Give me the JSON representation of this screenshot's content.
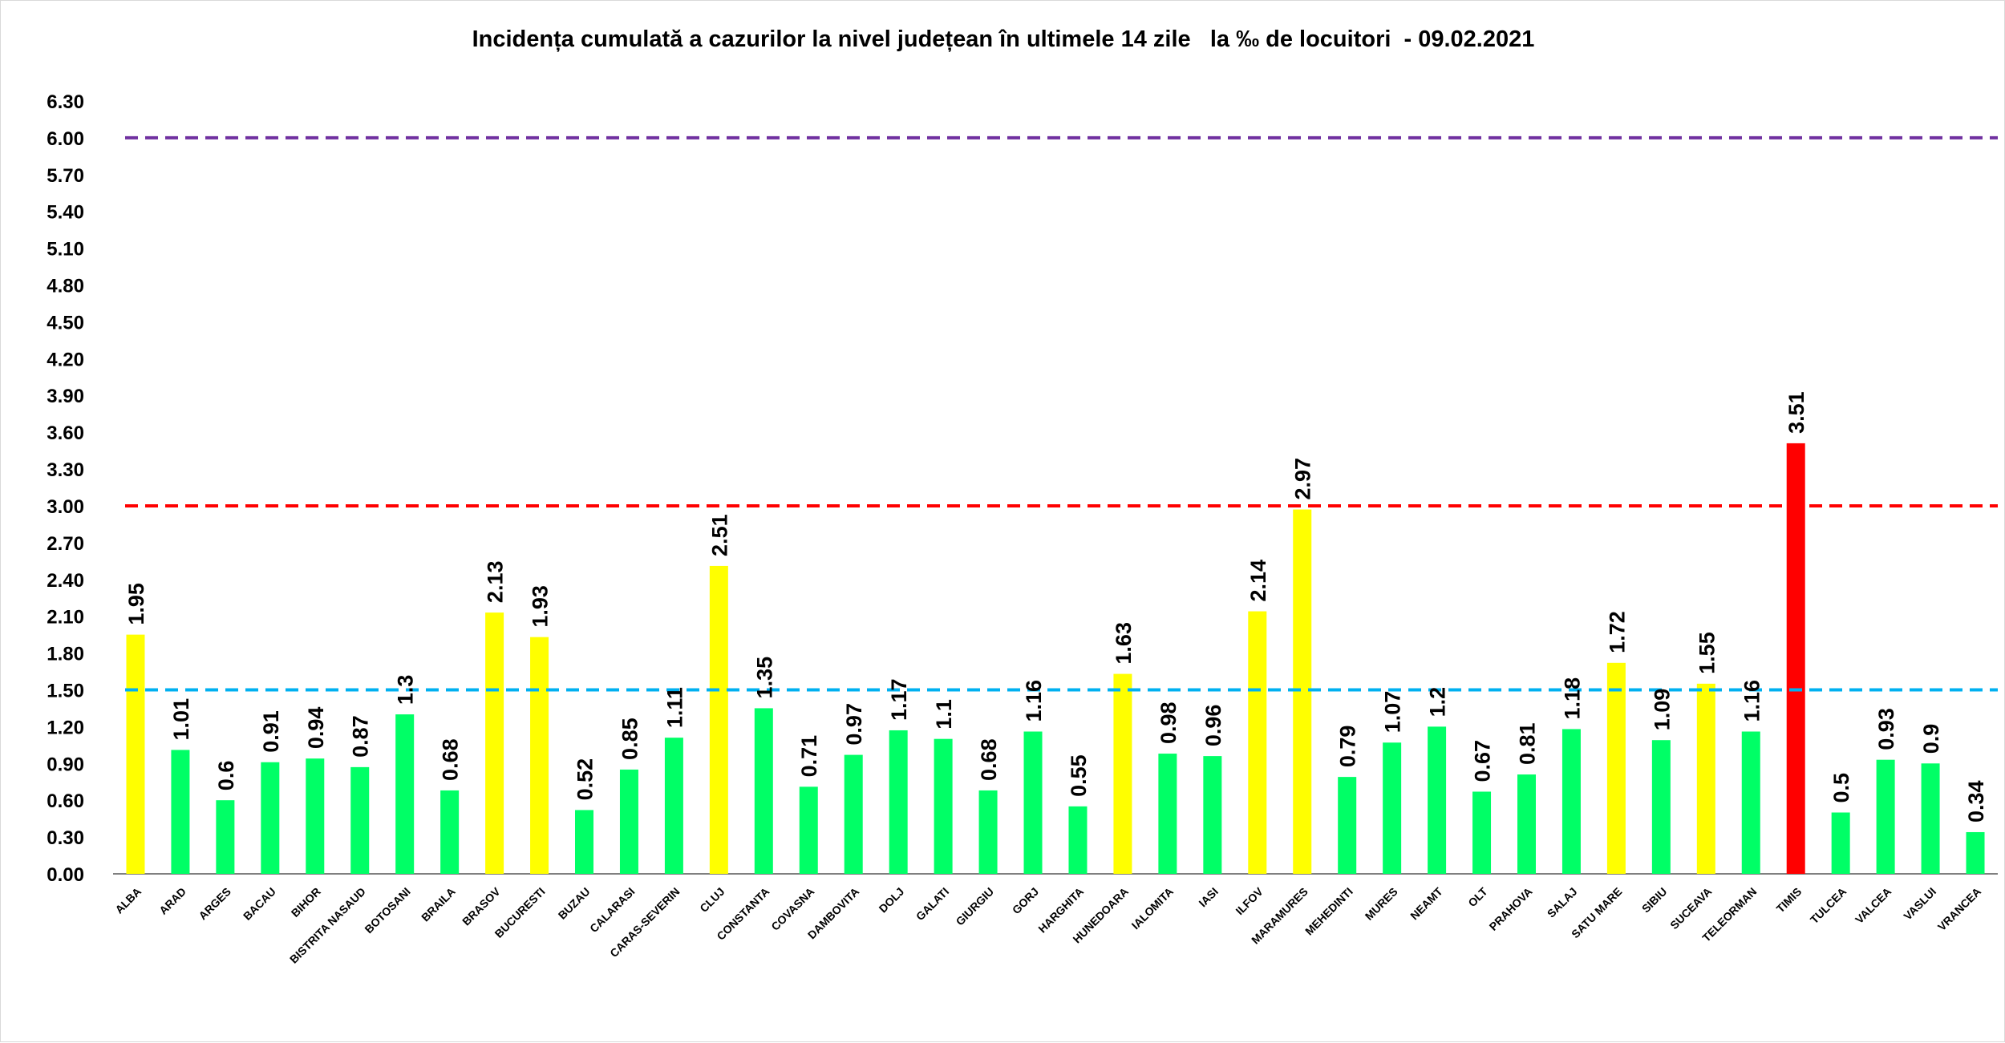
{
  "chart_data": {
    "type": "bar",
    "title": "Incidența cumulată a cazurilor la nivel județean în ultimele 14 zile   la ‰ de locuitori  - 09.02.2021",
    "xlabel": "",
    "ylabel": "",
    "ylim": [
      0,
      6.3
    ],
    "yticks": [
      "0.00",
      "0.30",
      "0.60",
      "0.90",
      "1.20",
      "1.50",
      "1.80",
      "2.10",
      "2.40",
      "2.70",
      "3.00",
      "3.30",
      "3.60",
      "3.90",
      "4.20",
      "4.50",
      "4.80",
      "5.10",
      "5.40",
      "5.70",
      "6.00",
      "6.30"
    ],
    "grid": false,
    "legend": "none",
    "categories": [
      "ALBA",
      "ARAD",
      "ARGES",
      "BACAU",
      "BIHOR",
      "BISTRITA NASAUD",
      "BOTOSANI",
      "BRAILA",
      "BRASOV",
      "BUCURESTI",
      "BUZAU",
      "CALARASI",
      "CARAS-SEVERIN",
      "CLUJ",
      "CONSTANTA",
      "COVASNA",
      "DAMBOVITA",
      "DOLJ",
      "GALATI",
      "GIURGIU",
      "GORJ",
      "HARGHITA",
      "HUNEDOARA",
      "IALOMITA",
      "IASI",
      "ILFOV",
      "MARAMURES",
      "MEHEDINTI",
      "MURES",
      "NEAMT",
      "OLT",
      "PRAHOVA",
      "SALAJ",
      "SATU MARE",
      "SIBIU",
      "SUCEAVA",
      "TELEORMAN",
      "TIMIS",
      "TULCEA",
      "VALCEA",
      "VASLUI",
      "VRANCEA"
    ],
    "values": [
      1.95,
      1.01,
      0.6,
      0.91,
      0.94,
      0.87,
      1.3,
      0.68,
      2.13,
      1.93,
      0.52,
      0.85,
      1.11,
      2.51,
      1.35,
      0.71,
      0.97,
      1.17,
      1.1,
      0.68,
      1.16,
      0.55,
      1.63,
      0.98,
      0.96,
      2.14,
      2.97,
      0.79,
      1.07,
      1.2,
      0.67,
      0.81,
      1.18,
      1.72,
      1.09,
      1.55,
      1.16,
      3.51,
      0.5,
      0.93,
      0.9,
      0.34
    ],
    "value_labels": [
      "1.95",
      "1.01",
      "0.6",
      "0.91",
      "0.94",
      "0.87",
      "1.3",
      "0.68",
      "2.13",
      "1.93",
      "0.52",
      "0.85",
      "1.11",
      "2.51",
      "1.35",
      "0.71",
      "0.97",
      "1.17",
      "1.1",
      "0.68",
      "1.16",
      "0.55",
      "1.63",
      "0.98",
      "0.96",
      "2.14",
      "2.97",
      "0.79",
      "1.07",
      "1.2",
      "0.67",
      "0.81",
      "1.18",
      "1.72",
      "1.09",
      "1.55",
      "1.16",
      "3.51",
      "0.5",
      "0.93",
      "0.9",
      "0.34"
    ],
    "thresholds": [
      {
        "value": 6.0,
        "color": "#7030a0",
        "style": "dashed"
      },
      {
        "value": 3.0,
        "color": "#ff0000",
        "style": "dashed"
      },
      {
        "value": 1.5,
        "color": "#00b0f0",
        "style": "dashed"
      }
    ],
    "colors": {
      "low": "#00ff66",
      "medium": "#ffff00",
      "high": "#ff0000",
      "axis": "#000000"
    }
  }
}
